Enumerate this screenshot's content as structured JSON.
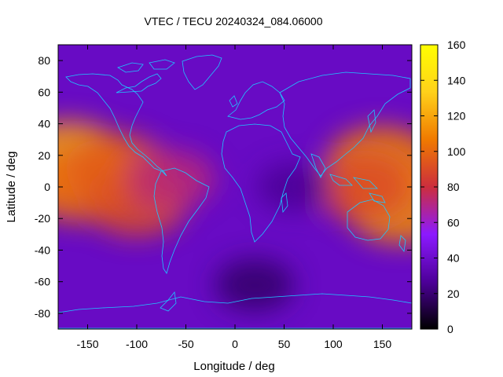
{
  "chart_data": {
    "type": "heatmap",
    "title": "VTEC / TECU 20240324_084.06000",
    "xlabel": "Longitude / deg",
    "ylabel": "Latitude / deg",
    "xlim": [
      -180,
      180
    ],
    "ylim": [
      -90,
      90
    ],
    "x_ticks": [
      -150,
      -100,
      -50,
      0,
      50,
      100,
      150
    ],
    "y_ticks": [
      -80,
      -60,
      -40,
      -20,
      0,
      20,
      40,
      60,
      80
    ],
    "colorbar": {
      "range": [
        0,
        160
      ],
      "ticks": [
        0,
        20,
        40,
        60,
        80,
        100,
        120,
        140,
        160
      ],
      "colormap": [
        "#000000",
        "#4d0099",
        "#8c1aff",
        "#cc2e3d",
        "#f07a00",
        "#ffd11a",
        "#ffff00"
      ]
    },
    "background_level": 38,
    "features": [
      {
        "lon": -170,
        "lat": 17,
        "value": 118
      },
      {
        "lon": -160,
        "lat": 0,
        "value": 102
      },
      {
        "lon": -120,
        "lat": 12,
        "value": 96
      },
      {
        "lon": -100,
        "lat": -10,
        "value": 92
      },
      {
        "lon": -65,
        "lat": 5,
        "value": 72
      },
      {
        "lon": 170,
        "lat": -12,
        "value": 112
      },
      {
        "lon": 150,
        "lat": 15,
        "value": 108
      },
      {
        "lon": 130,
        "lat": 0,
        "value": 90
      },
      {
        "lon": 20,
        "lat": -62,
        "value": 18
      },
      {
        "lon": 60,
        "lat": 0,
        "value": 26
      }
    ],
    "coastlines": "world map outline overlay in cyan",
    "coastline_color": "#1ec8ff"
  }
}
